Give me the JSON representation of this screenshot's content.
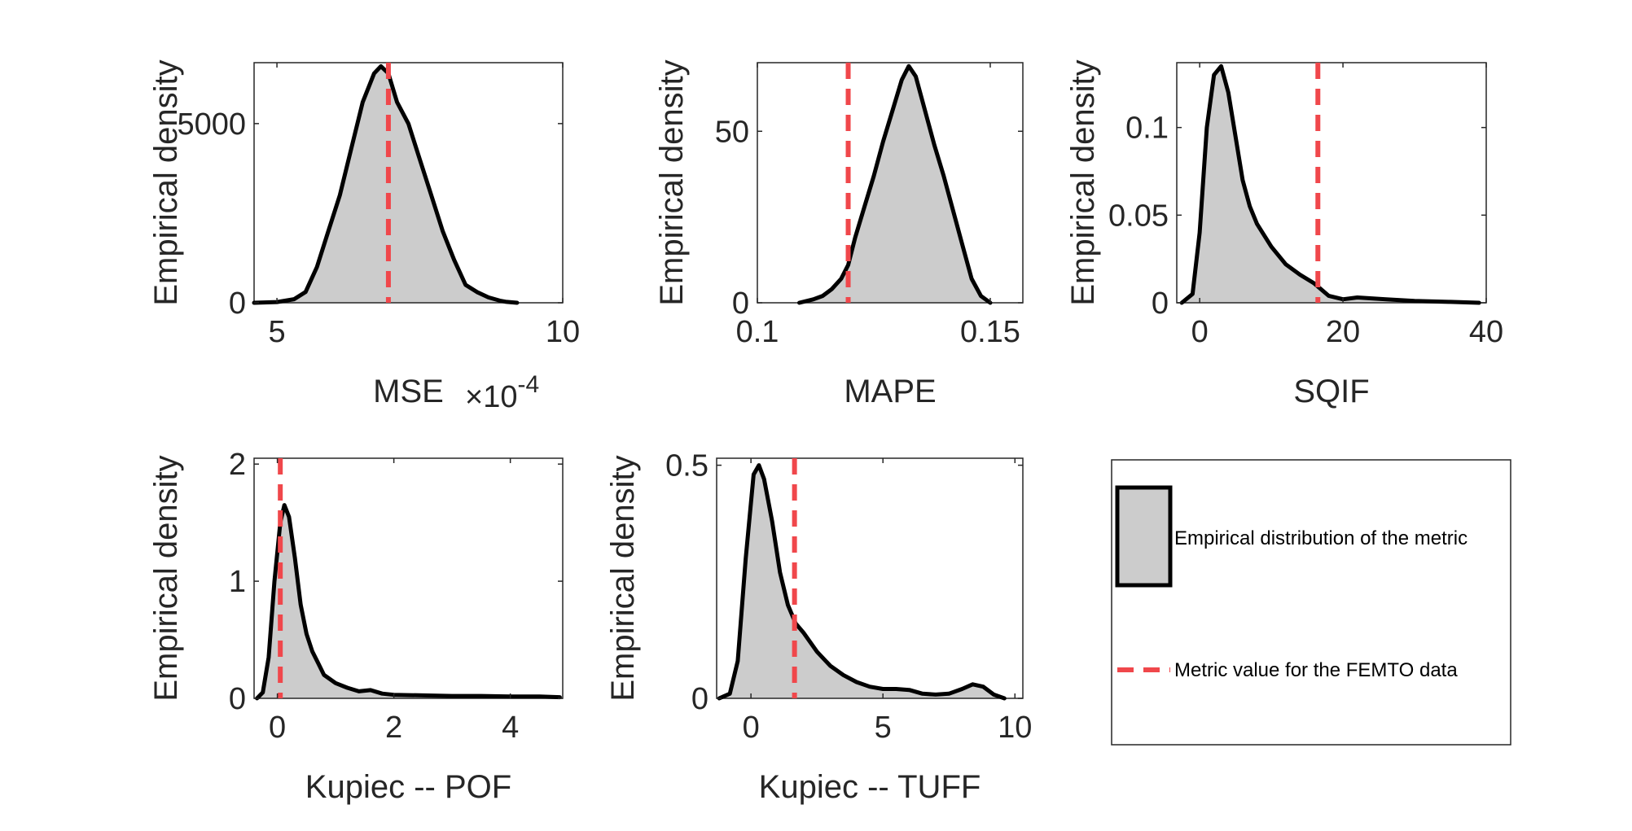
{
  "colors": {
    "fill": "#cccccc",
    "curve": "#000000",
    "ref": "#f0474b",
    "axis": "#262626"
  },
  "chart_data": [
    {
      "type": "area",
      "xlabel": "MSE",
      "ylabel": "Empirical density",
      "exponent_base": "×10",
      "exponent_power": "-4",
      "xlim": [
        4.6,
        10.0
      ],
      "ylim": [
        0,
        6700
      ],
      "xticks": [
        5,
        10
      ],
      "xtick_labels": [
        "5",
        "10"
      ],
      "yticks": [
        0,
        5000
      ],
      "ytick_labels": [
        "0",
        "5000"
      ],
      "reference_value": 6.95,
      "density": {
        "x": [
          4.6,
          5.0,
          5.3,
          5.5,
          5.7,
          5.9,
          6.1,
          6.3,
          6.5,
          6.7,
          6.82,
          6.95,
          7.1,
          7.3,
          7.5,
          7.7,
          7.9,
          8.1,
          8.3,
          8.5,
          8.7,
          8.9,
          9.0,
          9.2
        ],
        "y": [
          0,
          20,
          100,
          300,
          1000,
          2000,
          3000,
          4300,
          5600,
          6400,
          6600,
          6400,
          5600,
          5000,
          4000,
          3000,
          2000,
          1200,
          500,
          300,
          150,
          60,
          30,
          0
        ]
      }
    },
    {
      "type": "area",
      "xlabel": "MAPE",
      "ylabel": "Empirical density",
      "xlim": [
        0.1,
        0.157
      ],
      "ylim": [
        0,
        70
      ],
      "xticks": [
        0.1,
        0.15
      ],
      "xtick_labels": [
        "0.1",
        "0.15"
      ],
      "yticks": [
        0,
        50
      ],
      "ytick_labels": [
        "0",
        "50"
      ],
      "reference_value": 0.1195,
      "density": {
        "x": [
          0.109,
          0.112,
          0.114,
          0.116,
          0.118,
          0.1195,
          0.121,
          0.123,
          0.125,
          0.127,
          0.129,
          0.131,
          0.1325,
          0.134,
          0.136,
          0.138,
          0.14,
          0.142,
          0.144,
          0.146,
          0.148,
          0.15
        ],
        "y": [
          0,
          1,
          2,
          4,
          7,
          11,
          19,
          28,
          37,
          47,
          56,
          65,
          69,
          66,
          56,
          46,
          37,
          27,
          17,
          7,
          2,
          0
        ]
      }
    },
    {
      "type": "area",
      "xlabel": "SQIF",
      "ylabel": "Empirical density",
      "xlim": [
        -3.2,
        40
      ],
      "ylim": [
        0,
        0.137
      ],
      "xticks": [
        0,
        20,
        40
      ],
      "xtick_labels": [
        "0",
        "20",
        "40"
      ],
      "yticks": [
        0,
        0.05,
        0.1
      ],
      "ytick_labels": [
        "0",
        "0.05",
        "0.1"
      ],
      "reference_value": 16.5,
      "density": {
        "x": [
          -2.5,
          -1,
          0,
          1,
          2,
          3,
          4,
          5,
          6,
          7,
          8,
          10,
          12,
          14,
          16,
          18,
          20,
          22,
          24,
          26,
          28,
          30,
          35,
          39
        ],
        "y": [
          0,
          0.005,
          0.04,
          0.1,
          0.13,
          0.135,
          0.12,
          0.095,
          0.07,
          0.055,
          0.045,
          0.032,
          0.022,
          0.016,
          0.011,
          0.004,
          0.002,
          0.003,
          0.0025,
          0.002,
          0.0015,
          0.001,
          0.0005,
          0
        ]
      }
    },
    {
      "type": "area",
      "xlabel": "Kupiec -- POF",
      "ylabel": "Empirical density",
      "xlim": [
        -0.4,
        4.9
      ],
      "ylim": [
        0,
        2.05
      ],
      "xticks": [
        0,
        2,
        4
      ],
      "xtick_labels": [
        "0",
        "2",
        "4"
      ],
      "yticks": [
        0,
        1,
        2
      ],
      "ytick_labels": [
        "0",
        "1",
        "2"
      ],
      "reference_value": 0.05,
      "density": {
        "x": [
          -0.35,
          -0.25,
          -0.15,
          -0.05,
          0.05,
          0.12,
          0.2,
          0.3,
          0.4,
          0.5,
          0.6,
          0.7,
          0.8,
          1.0,
          1.2,
          1.4,
          1.6,
          1.8,
          2.0,
          2.5,
          3.0,
          3.5,
          4.0,
          4.5,
          4.85
        ],
        "y": [
          0,
          0.05,
          0.35,
          1.0,
          1.5,
          1.65,
          1.55,
          1.2,
          0.8,
          0.55,
          0.4,
          0.3,
          0.2,
          0.13,
          0.09,
          0.06,
          0.07,
          0.04,
          0.03,
          0.025,
          0.02,
          0.02,
          0.015,
          0.015,
          0.01
        ]
      }
    },
    {
      "type": "area",
      "xlabel": "Kupiec -- TUFF",
      "ylabel": "Empirical density",
      "xlim": [
        -1.3,
        10.3
      ],
      "ylim": [
        0,
        0.515
      ],
      "xticks": [
        0,
        5,
        10
      ],
      "xtick_labels": [
        "0",
        "5",
        "10"
      ],
      "yticks": [
        0,
        0.5
      ],
      "ytick_labels": [
        "0",
        "0.5"
      ],
      "reference_value": 1.65,
      "density": {
        "x": [
          -1.2,
          -0.8,
          -0.5,
          -0.2,
          0.1,
          0.3,
          0.5,
          0.8,
          1.1,
          1.4,
          1.7,
          2.0,
          2.5,
          3.0,
          3.5,
          4.0,
          4.5,
          5.0,
          5.5,
          6.0,
          6.5,
          7.0,
          7.5,
          8.0,
          8.4,
          8.8,
          9.2,
          9.6
        ],
        "y": [
          0,
          0.01,
          0.08,
          0.3,
          0.48,
          0.5,
          0.47,
          0.38,
          0.27,
          0.2,
          0.16,
          0.14,
          0.1,
          0.07,
          0.05,
          0.035,
          0.025,
          0.02,
          0.02,
          0.018,
          0.01,
          0.008,
          0.01,
          0.02,
          0.03,
          0.025,
          0.008,
          0
        ]
      }
    }
  ],
  "legend": {
    "items": [
      {
        "label": "Empirical distribution of the metric",
        "kind": "patch"
      },
      {
        "label": "Metric value for the FEMTO data",
        "kind": "dashed-line"
      }
    ]
  }
}
